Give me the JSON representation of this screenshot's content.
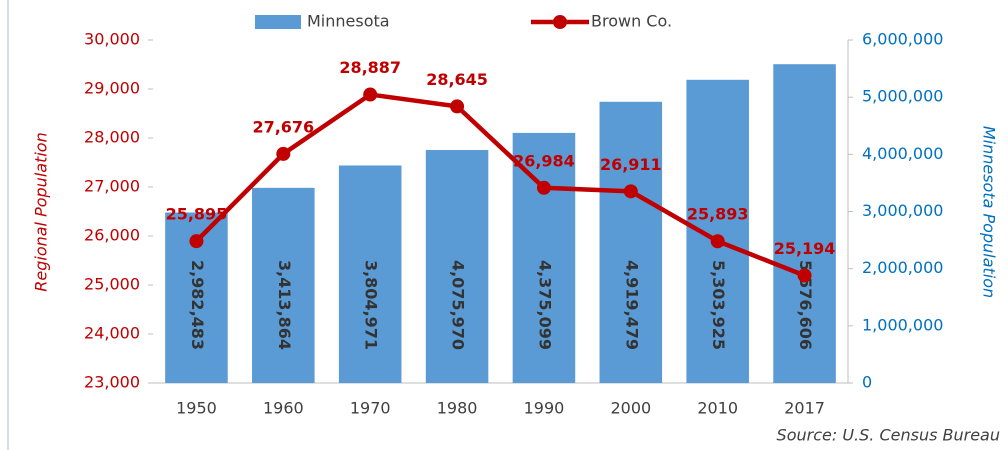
{
  "chart_data": {
    "type": "combo",
    "categories": [
      "1950",
      "1960",
      "1970",
      "1980",
      "1990",
      "2000",
      "2010",
      "2017"
    ],
    "series": [
      {
        "name": "Minnesota",
        "type": "bar",
        "axis": "y2",
        "color": "#5b9bd5",
        "values": [
          2982483,
          3413864,
          3804971,
          4075970,
          4375099,
          4919479,
          5303925,
          5576606
        ],
        "value_labels": [
          "2,982,483",
          "3,413,864",
          "3,804,971",
          "4,075,970",
          "4,375,099",
          "4,919,479",
          "5,303,925",
          "5,576,606"
        ]
      },
      {
        "name": "Brown Co.",
        "type": "line",
        "axis": "y",
        "color": "#c00000",
        "values": [
          25895,
          27676,
          28887,
          28645,
          26984,
          26911,
          25893,
          25194
        ],
        "value_labels": [
          "25,895",
          "27,676",
          "28,887",
          "28,645",
          "26,984",
          "26,911",
          "25,893",
          "25,194"
        ]
      }
    ],
    "ylabel": "Regional Population",
    "y2label": "Minnesota Population",
    "ylim": [
      23000,
      30000
    ],
    "yticks": [
      {
        "value": 23000,
        "label": "23,000"
      },
      {
        "value": 24000,
        "label": "24,000"
      },
      {
        "value": 25000,
        "label": "25,000"
      },
      {
        "value": 26000,
        "label": "26,000"
      },
      {
        "value": 27000,
        "label": "27,000"
      },
      {
        "value": 28000,
        "label": "28,000"
      },
      {
        "value": 29000,
        "label": "29,000"
      },
      {
        "value": 30000,
        "label": "30,000"
      }
    ],
    "y2lim": [
      0,
      6000000
    ],
    "y2ticks": [
      0,
      {
        "value": 1000000,
        "label": "1,000,000"
      },
      {
        "value": 2000000,
        "label": "2,000,000"
      },
      {
        "value": 3000000,
        "label": "3,000,000"
      },
      {
        "value": 4000000,
        "label": "4,000,000"
      },
      {
        "value": 5000000,
        "label": "5,000,000"
      },
      {
        "value": 6000000,
        "label": "6,000,000"
      }
    ],
    "grid": false,
    "legend": "top",
    "annotation": "Source: U.S. Census Bureau"
  }
}
